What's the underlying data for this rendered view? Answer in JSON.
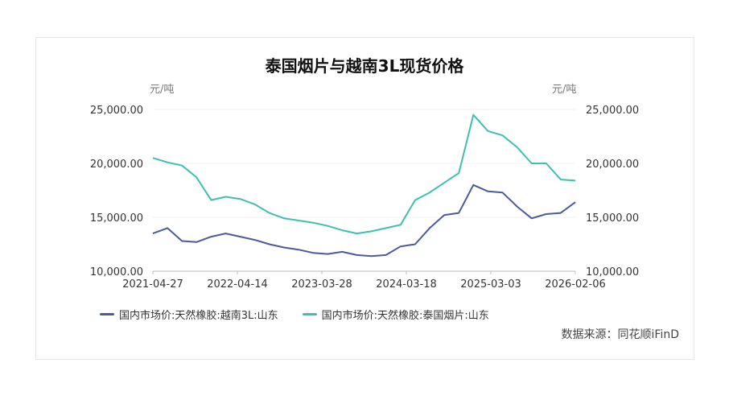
{
  "chart_data": {
    "type": "line",
    "title": "泰国烟片与越南3L现货价格",
    "y_unit_left": "元/吨",
    "y_unit_right": "元/吨",
    "ylim": [
      10000,
      25000
    ],
    "y_ticks": [
      "25,000.00",
      "20,000.00",
      "15,000.00",
      "10,000.00"
    ],
    "x_ticks": [
      "2021-04-27",
      "2022-04-14",
      "2023-03-28",
      "2024-03-18",
      "2025-03-03",
      "2026-02-06"
    ],
    "grid": true,
    "legend_position": "bottom",
    "x": [
      "2021-04",
      "2021-06",
      "2021-08",
      "2021-10",
      "2021-12",
      "2022-02",
      "2022-04",
      "2022-06",
      "2022-08",
      "2022-10",
      "2022-12",
      "2023-02",
      "2023-04",
      "2023-06",
      "2023-08",
      "2023-10",
      "2023-12",
      "2024-02",
      "2024-04",
      "2024-06",
      "2024-08",
      "2024-10",
      "2024-12",
      "2025-02",
      "2025-04",
      "2025-06",
      "2025-08",
      "2025-10",
      "2025-12",
      "2026-02"
    ],
    "series": [
      {
        "name": "国内市场价:天然橡胶:越南3L:山东",
        "color": "#4b5a9b",
        "values": [
          13500,
          14000,
          12800,
          12700,
          13200,
          13500,
          13200,
          12900,
          12500,
          12200,
          12000,
          11700,
          11600,
          11800,
          11500,
          11400,
          11500,
          12300,
          12500,
          14000,
          15200,
          15400,
          18000,
          17400,
          17300,
          16000,
          14900,
          15300,
          15400,
          16400
        ]
      },
      {
        "name": "国内市场价:天然橡胶:泰国烟片:山东",
        "color": "#3dbfb1",
        "values": [
          20500,
          20100,
          19800,
          18700,
          16600,
          16900,
          16700,
          16200,
          15400,
          14900,
          14700,
          14500,
          14200,
          13800,
          13500,
          13700,
          14000,
          14300,
          16600,
          17300,
          18200,
          19100,
          24500,
          23000,
          22600,
          21500,
          20000,
          20000,
          18500,
          18400
        ]
      }
    ]
  },
  "source": "数据来源：同花顺iFinD"
}
